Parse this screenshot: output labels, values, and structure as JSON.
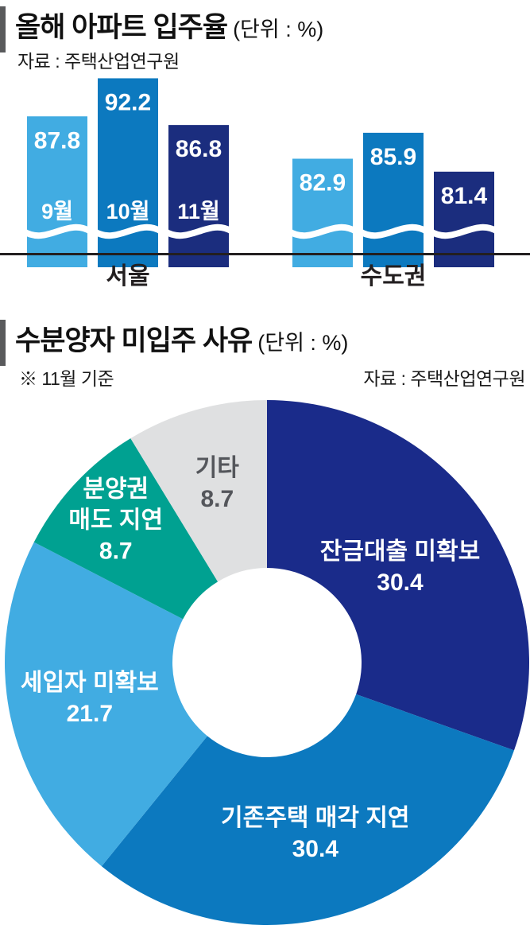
{
  "colors": {
    "background": "#FFFFFF",
    "axis": "#231F20",
    "accent_bar": "#595A5C",
    "group_label_text": "#231F20",
    "bar_value_text": "#FFFFFF"
  },
  "chart_data": [
    {
      "type": "bar",
      "title": "올해 아파트 입주율",
      "unit": "(단위 : %)",
      "source": "자료 : 주택산업연구원",
      "categories": [
        "서울",
        "수도권"
      ],
      "months": [
        "9월",
        "10월",
        "11월"
      ],
      "series": [
        {
          "name": "9월",
          "color": "#41ACE2",
          "values": [
            87.8,
            82.9
          ]
        },
        {
          "name": "10월",
          "color": "#0C79BF",
          "values": [
            92.2,
            85.9
          ]
        },
        {
          "name": "11월",
          "color": "#1B2D7E",
          "values": [
            86.8,
            81.4
          ]
        }
      ],
      "show_month_labels_on_group": 0,
      "broken_axis": true,
      "ylim": [
        72,
        95
      ],
      "grid": false,
      "legend": "none"
    },
    {
      "type": "pie",
      "title": "수분양자 미입주 사유",
      "unit": "(단위 : %)",
      "note": "※ 11월 기준",
      "source": "자료 : 주택산업연구원",
      "donut": true,
      "start_angle_deg": 0,
      "clockwise": true,
      "slices": [
        {
          "label_lines": [
            "잔금대출 미확보"
          ],
          "value": 30.4,
          "color": "#1A2B8A",
          "text_color": "#FFFFFF",
          "label_radius": 205
        },
        {
          "label_lines": [
            "기존주택 매각 지연"
          ],
          "value": 30.4,
          "color": "#0C79BF",
          "text_color": "#FFFFFF",
          "label_radius": 225
        },
        {
          "label_lines": [
            "세입자 미확보"
          ],
          "value": 21.7,
          "color": "#41ACE2",
          "text_color": "#FFFFFF",
          "label_radius": 228
        },
        {
          "label_lines": [
            "분양권",
            "매도 지연"
          ],
          "value": 8.7,
          "color": "#00A191",
          "text_color": "#FFFFFF",
          "label_radius": 260
        },
        {
          "label_lines": [
            "기타"
          ],
          "value": 8.7,
          "color": "#DFE0E1",
          "text_color": "#54565B",
          "label_radius": 232
        }
      ]
    }
  ]
}
